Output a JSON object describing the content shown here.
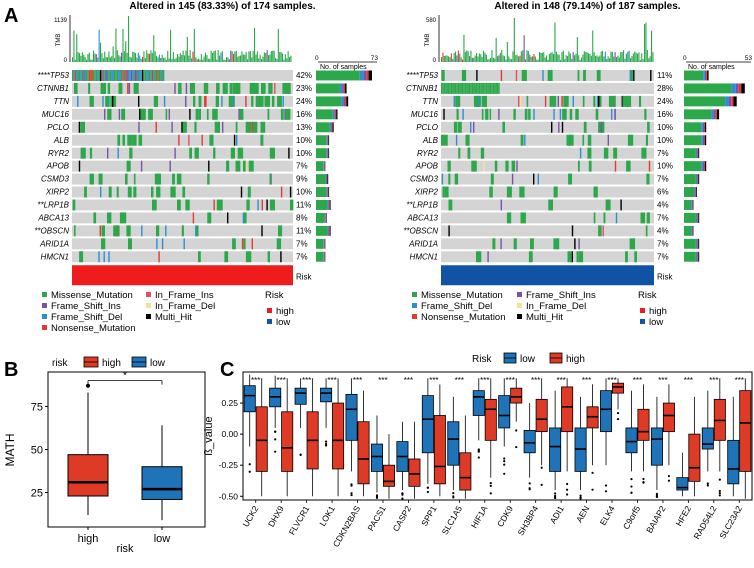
{
  "panels": {
    "A": "A",
    "B": "B",
    "C": "C"
  },
  "colors": {
    "missense": "#2ba84a",
    "frameshift_ins": "#7b52ab",
    "frameshift_del": "#2c8fd4",
    "nonsense": "#e8392f",
    "inframe_ins": "#e84c6a",
    "inframe_del": "#f2e394",
    "multi_hit": "#000000",
    "cell_bg": "#d4d4d4",
    "risk_high": "#ee1c1c",
    "risk_low": "#1052a4",
    "box_high": "#de3a26",
    "box_low": "#1f73b8"
  },
  "oncoplots": [
    {
      "title": "Altered in 145 (83.33%) of 174 samples.",
      "tmb_label": "TMB",
      "tmb_max": "1139",
      "tmb_min": "0",
      "samples_label": "No. of samples",
      "samples_min": "0",
      "samples_max": "73",
      "samples_max_value": 73,
      "risk_group": "high",
      "risk_bar_label": "Risk",
      "genes": [
        "****TP53",
        "CTNNB1",
        "TTN",
        "MUC16",
        "PCLO",
        "ALB",
        "RYR2",
        "APOB",
        "CSMD3",
        "XIRP2",
        "**LRP1B",
        "ABCA13",
        "**OBSCN",
        "ARID1A",
        "HMCN1"
      ],
      "percents": [
        "42%",
        "23%",
        "24%",
        "16%",
        "13%",
        "10%",
        "10%",
        "7%",
        "9%",
        "10%",
        "11%",
        "8%",
        "11%",
        "7%",
        "7%"
      ],
      "counts": [
        73,
        40,
        42,
        28,
        23,
        17,
        17,
        12,
        16,
        17,
        19,
        14,
        19,
        12,
        12
      ]
    },
    {
      "title": "Altered in 148 (79.14%) of 187 samples.",
      "tmb_label": "TMB",
      "tmb_max": "580",
      "tmb_min": "0",
      "samples_label": "No. of samples",
      "samples_min": "0",
      "samples_max": "53",
      "samples_max_value": 53,
      "risk_group": "low",
      "risk_bar_label": "Risk",
      "genes": [
        "****TP53",
        "CTNNB1",
        "TTN",
        "MUC16",
        "PCLO",
        "ALB",
        "RYR2",
        "APOB",
        "CSMD3",
        "XIRP2",
        "**LRP1B",
        "ABCA13",
        "**OBSCN",
        "ARID1A",
        "HMCN1"
      ],
      "percents": [
        "11%",
        "28%",
        "24%",
        "16%",
        "10%",
        "10%",
        "7%",
        "10%",
        "7%",
        "6%",
        "4%",
        "7%",
        "4%",
        "7%",
        "7%"
      ],
      "counts": [
        21,
        52,
        45,
        30,
        19,
        19,
        13,
        19,
        13,
        11,
        8,
        13,
        8,
        13,
        13
      ]
    }
  ],
  "legends": [
    {
      "items": [
        {
          "label": "Missense_Mutation",
          "color_key": "missense"
        },
        {
          "label": "In_Frame_Ins",
          "color_key": "inframe_ins"
        },
        {
          "label": "Frame_Shift_Ins",
          "color_key": "frameshift_ins"
        },
        {
          "label": "In_Frame_Del",
          "color_key": "inframe_del"
        },
        {
          "label": "Frame_Shift_Del",
          "color_key": "frameshift_del"
        },
        {
          "label": "Multi_Hit",
          "color_key": "multi_hit"
        },
        {
          "label": "Nonsense_Mutation",
          "color_key": "nonsense"
        }
      ],
      "risk_title": "Risk",
      "risk_items": [
        {
          "label": "high",
          "color_key": "risk_high"
        },
        {
          "label": "low",
          "color_key": "risk_low"
        }
      ]
    },
    {
      "items": [
        {
          "label": "Missense_Mutation",
          "color_key": "missense"
        },
        {
          "label": "Frame_Shift_Ins",
          "color_key": "frameshift_ins"
        },
        {
          "label": "Frame_Shift_Del",
          "color_key": "frameshift_del"
        },
        {
          "label": "In_Frame_Del",
          "color_key": "inframe_del"
        },
        {
          "label": "Nonsense_Mutation",
          "color_key": "nonsense"
        },
        {
          "label": "Multi_Hit",
          "color_key": "multi_hit"
        }
      ],
      "risk_title": "Risk",
      "risk_items": [
        {
          "label": "high",
          "color_key": "risk_high"
        },
        {
          "label": "low",
          "color_key": "risk_low"
        }
      ]
    }
  ],
  "chart_data": [
    {
      "type": "box",
      "panel": "B",
      "legend_title": "risk",
      "legend": [
        "high",
        "low"
      ],
      "categories": [
        "high",
        "low"
      ],
      "xlabel": "risk",
      "ylabel": "MATH",
      "ylim": [
        5,
        95
      ],
      "yticks": [
        25,
        50,
        75
      ],
      "significance": "*",
      "boxes": [
        {
          "group": "high",
          "q1": 23,
          "median": 31,
          "q3": 47,
          "whisker_low": 12,
          "whisker_high": 83,
          "outliers": [
            87
          ]
        },
        {
          "group": "low",
          "q1": 21,
          "median": 27,
          "q3": 40,
          "whisker_low": 9,
          "whisker_high": 64,
          "outliers": []
        }
      ]
    },
    {
      "type": "box",
      "panel": "C",
      "legend_title": "Risk",
      "legend": [
        "low",
        "high"
      ],
      "ylabel": "ß_value",
      "ylim": [
        -0.53,
        0.5
      ],
      "yticks": [
        -0.5,
        -0.25,
        0.0,
        0.25
      ],
      "ytick_labels": [
        "-0.50",
        "-0.25",
        "0.00",
        "0.25"
      ],
      "categories": [
        "UCK2",
        "DHX9",
        "FLVCR1",
        "LOK1",
        "CDKN2BAS",
        "PACS1",
        "CASP2",
        "SPP1",
        "SLC1A5",
        "HIF1A",
        "CDK9",
        "SH3BP4",
        "ADI1",
        "AEN",
        "ELK4",
        "C9orf5",
        "BAIAP2",
        "HFE2",
        "RAD54L2",
        "SLC23A2"
      ],
      "significance": [
        "***",
        "***",
        "***",
        "***",
        "***",
        "***",
        "***",
        "***",
        "***",
        "***",
        "***",
        "***",
        "***",
        "***",
        "***",
        "***",
        "***",
        "***",
        "***",
        "***"
      ],
      "series": [
        {
          "name": "low",
          "boxes": [
            [
              -0.1,
              0.18,
              0.31,
              0.39,
              0.48
            ],
            [
              0.05,
              0.22,
              0.3,
              0.37,
              0.47
            ],
            [
              0.05,
              0.24,
              0.33,
              0.37,
              0.45
            ],
            [
              0.05,
              0.26,
              0.33,
              0.37,
              0.45
            ],
            [
              -0.3,
              -0.05,
              0.2,
              0.32,
              0.45
            ],
            [
              -0.47,
              -0.3,
              -0.18,
              -0.08,
              0.15
            ],
            [
              -0.45,
              -0.3,
              -0.18,
              -0.06,
              0.1
            ],
            [
              -0.4,
              -0.15,
              0.12,
              0.31,
              0.45
            ],
            [
              -0.45,
              -0.25,
              -0.04,
              0.1,
              0.3
            ],
            [
              -0.05,
              0.15,
              0.3,
              0.35,
              0.45
            ],
            [
              -0.1,
              0.05,
              0.15,
              0.31,
              0.45
            ],
            [
              -0.35,
              -0.15,
              -0.07,
              0.03,
              0.25
            ],
            [
              -0.45,
              -0.3,
              -0.1,
              0.05,
              0.35
            ],
            [
              -0.45,
              -0.3,
              -0.12,
              0.05,
              0.3
            ],
            [
              -0.25,
              0.02,
              0.2,
              0.35,
              0.45
            ],
            [
              -0.3,
              -0.15,
              -0.06,
              0.05,
              0.35
            ],
            [
              -0.45,
              -0.25,
              -0.04,
              0.05,
              0.3
            ],
            [
              -0.5,
              -0.45,
              -0.43,
              -0.35,
              -0.15
            ],
            [
              -0.3,
              -0.12,
              -0.08,
              0.05,
              0.35
            ],
            [
              -0.5,
              -0.4,
              -0.28,
              -0.05,
              0.3
            ]
          ]
        },
        {
          "name": "high",
          "boxes": [
            [
              -0.5,
              -0.3,
              -0.05,
              0.22,
              0.45
            ],
            [
              -0.5,
              -0.3,
              -0.11,
              0.18,
              0.45
            ],
            [
              -0.5,
              -0.28,
              -0.05,
              0.18,
              0.45
            ],
            [
              -0.5,
              -0.28,
              -0.05,
              0.25,
              0.45
            ],
            [
              -0.5,
              -0.4,
              -0.2,
              0.1,
              0.35
            ],
            [
              -0.52,
              -0.42,
              -0.38,
              -0.25,
              0.0
            ],
            [
              -0.52,
              -0.42,
              -0.32,
              -0.2,
              0.1
            ],
            [
              -0.5,
              -0.4,
              -0.26,
              0.15,
              0.4
            ],
            [
              -0.52,
              -0.45,
              -0.35,
              -0.15,
              0.15
            ],
            [
              -0.35,
              -0.05,
              0.2,
              0.28,
              0.45
            ],
            [
              0.1,
              0.25,
              0.3,
              0.37,
              0.45
            ],
            [
              -0.25,
              0.02,
              0.12,
              0.28,
              0.45
            ],
            [
              -0.3,
              0.02,
              0.22,
              0.38,
              0.45
            ],
            [
              -0.25,
              0.05,
              0.14,
              0.22,
              0.4
            ],
            [
              0.2,
              0.33,
              0.38,
              0.41,
              0.45
            ],
            [
              -0.3,
              -0.05,
              0.02,
              0.2,
              0.4
            ],
            [
              -0.25,
              0.02,
              0.15,
              0.25,
              0.4
            ],
            [
              -0.5,
              -0.38,
              -0.27,
              0.0,
              0.3
            ],
            [
              -0.3,
              -0.05,
              0.11,
              0.28,
              0.45
            ],
            [
              -0.52,
              -0.3,
              0.09,
              0.35,
              0.45
            ]
          ]
        }
      ]
    }
  ]
}
